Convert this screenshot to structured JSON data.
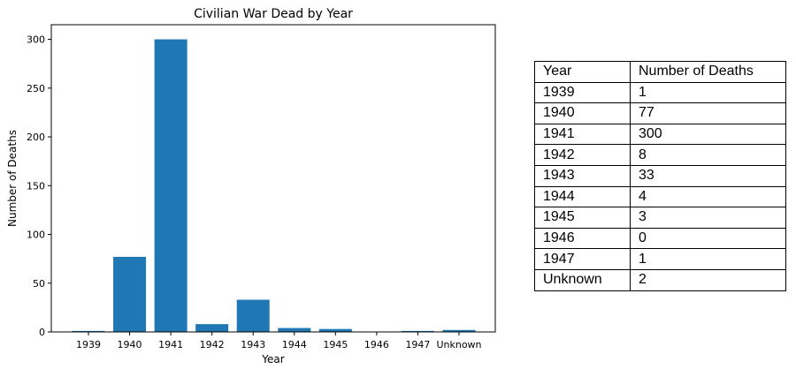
{
  "chart_data": {
    "type": "bar",
    "title": "Civilian War Dead by Year",
    "xlabel": "Year",
    "ylabel": "Number of Deaths",
    "categories": [
      "1939",
      "1940",
      "1941",
      "1942",
      "1943",
      "1944",
      "1945",
      "1946",
      "1947",
      "Unknown"
    ],
    "values": [
      1,
      77,
      300,
      8,
      33,
      4,
      3,
      0,
      1,
      2
    ],
    "ylim": [
      0,
      315
    ],
    "yticks": [
      0,
      50,
      100,
      150,
      200,
      250,
      300
    ],
    "grid": false,
    "bar_color": "#1f77b4"
  },
  "table": {
    "headers": [
      "Year",
      "Number of Deaths"
    ],
    "rows": [
      [
        "1939",
        "1"
      ],
      [
        "1940",
        "77"
      ],
      [
        "1941",
        "300"
      ],
      [
        "1942",
        "8"
      ],
      [
        "1943",
        "33"
      ],
      [
        "1944",
        "4"
      ],
      [
        "1945",
        "3"
      ],
      [
        "1946",
        "0"
      ],
      [
        "1947",
        "1"
      ],
      [
        "Unknown",
        "2"
      ]
    ]
  }
}
